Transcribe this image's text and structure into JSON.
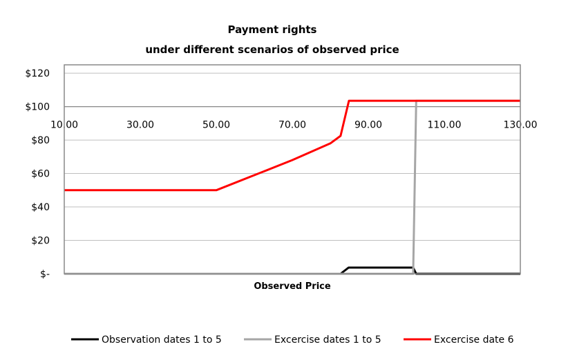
{
  "chart_data": {
    "type": "line",
    "title": [
      "Payment rights",
      "under different scenarios of observed price"
    ],
    "xlabel": "Observed Price",
    "ylabel": "",
    "xlim": [
      10,
      130
    ],
    "ylim": [
      0,
      125
    ],
    "x_ticks": [
      "10.00",
      "30.00",
      "50.00",
      "70.00",
      "90.00",
      "110.00",
      "130.00"
    ],
    "x_tick_values": [
      10,
      30,
      50,
      70,
      90,
      110,
      130
    ],
    "y_ticks": [
      "$-",
      "$20",
      "$40",
      "$60",
      "$80",
      "$100",
      "$120"
    ],
    "y_tick_values": [
      0,
      20,
      40,
      60,
      80,
      100,
      120
    ],
    "x_axis_crosses_at": 100,
    "grid": true,
    "legend_position": "bottom",
    "series": [
      {
        "name": "Observation dates 1 to 5",
        "color": "#000000",
        "points": [
          [
            10,
            0
          ],
          [
            82.7,
            0
          ],
          [
            84.8,
            3.7
          ],
          [
            101.8,
            3.7
          ],
          [
            102.6,
            0
          ],
          [
            130,
            0
          ]
        ]
      },
      {
        "name": "Excercise dates 1 to 5",
        "color": "#a6a6a6",
        "points": [
          [
            10,
            0
          ],
          [
            101.8,
            0
          ],
          [
            102.6,
            103.5
          ],
          [
            130,
            103.5
          ]
        ]
      },
      {
        "name": "Excercise date 6",
        "color": "#ff0000",
        "points": [
          [
            10,
            50
          ],
          [
            50,
            50
          ],
          [
            60,
            59
          ],
          [
            70,
            68
          ],
          [
            80,
            78
          ],
          [
            82.7,
            82.5
          ],
          [
            84.9,
            103.5
          ],
          [
            130,
            103.5
          ]
        ]
      }
    ]
  }
}
